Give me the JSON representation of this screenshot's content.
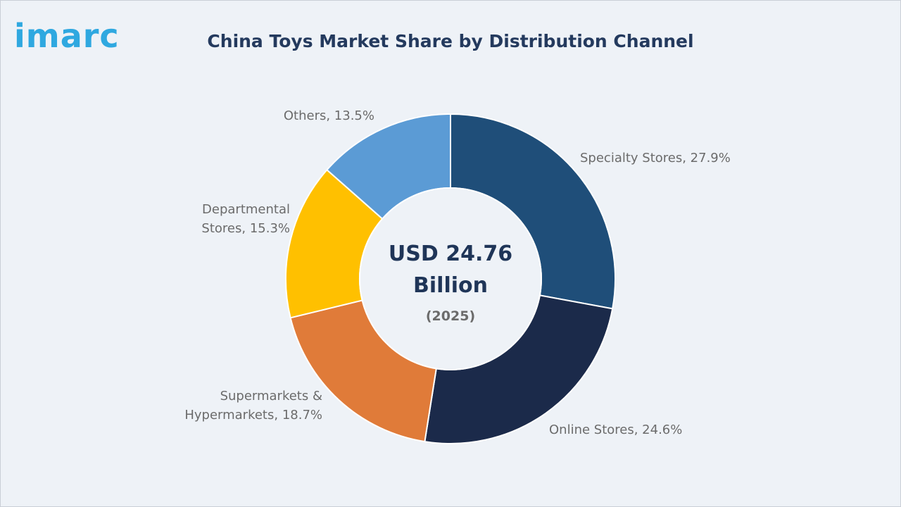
{
  "brand": {
    "logo_text": "imarc"
  },
  "chart_data": {
    "type": "pie",
    "variant": "donut",
    "title": "China Toys Market Share by Distribution Channel",
    "center": {
      "line1": "USD 24.76",
      "line2": "Billion",
      "year": "(2025)"
    },
    "slices": [
      {
        "label_lines": [
          "Specialty Stores, 27.9%"
        ],
        "value": 27.9,
        "color": "#1f4e79"
      },
      {
        "label_lines": [
          "Online Stores, 24.6%"
        ],
        "value": 24.6,
        "color": "#1b2a4a"
      },
      {
        "label_lines": [
          "Supermarkets &",
          "Hypermarkets, 18.7%"
        ],
        "value": 18.7,
        "color": "#e07b39"
      },
      {
        "label_lines": [
          "Departmental",
          "Stores, 15.3%"
        ],
        "value": 15.3,
        "color": "#ffc000"
      },
      {
        "label_lines": [
          "Others, 13.5%"
        ],
        "value": 13.5,
        "color": "#5b9bd5"
      }
    ],
    "start_angle": "12 o'clock",
    "direction": "clockwise",
    "legend": "none"
  }
}
